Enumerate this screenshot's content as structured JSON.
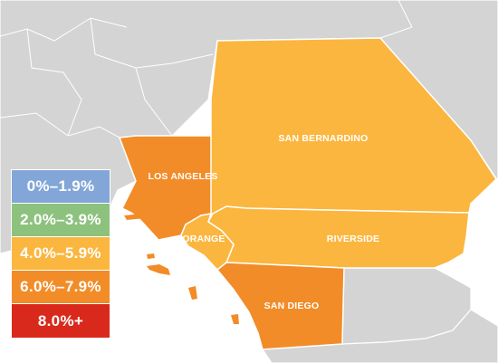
{
  "map": {
    "counties": [
      {
        "id": "los-angeles",
        "name": "LOS ANGELES",
        "color": "#f28c28",
        "bracket": "6.0%–7.9%"
      },
      {
        "id": "san-bernardino",
        "name": "SAN BERNARDINO",
        "color": "#fbb63f",
        "bracket": "4.0%–5.9%"
      },
      {
        "id": "riverside",
        "name": "RIVERSIDE",
        "color": "#fbb63f",
        "bracket": "4.0%–5.9%"
      },
      {
        "id": "orange",
        "name": "ORANGE",
        "color": "#fbb63f",
        "bracket": "4.0%–5.9%"
      },
      {
        "id": "san-diego",
        "name": "SAN DIEGO",
        "color": "#f28c28",
        "bracket": "6.0%–7.9%"
      }
    ],
    "colors": {
      "background_region": "#d4d4d4",
      "region_border": "#ffffff",
      "water": "#ffffff"
    }
  },
  "legend": {
    "items": [
      {
        "label": "0%–1.9%",
        "color": "#83a6d8"
      },
      {
        "label": "2.0%–3.9%",
        "color": "#8dc27e"
      },
      {
        "label": "4.0%–5.9%",
        "color": "#fbb63f"
      },
      {
        "label": "6.0%–7.9%",
        "color": "#f28c28"
      },
      {
        "label": "8.0%+",
        "color": "#d9291c"
      }
    ]
  }
}
